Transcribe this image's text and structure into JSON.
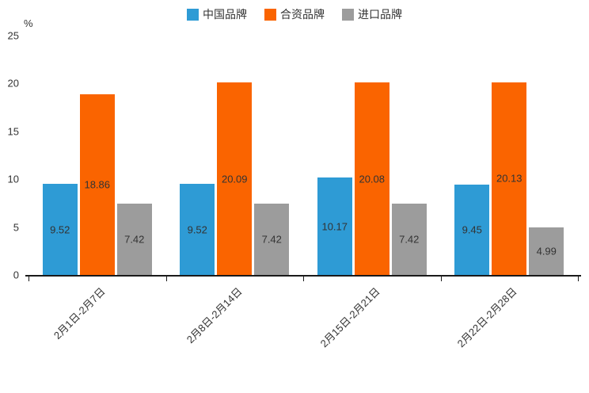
{
  "chart_data": {
    "type": "bar",
    "title": "",
    "xlabel": "",
    "ylabel": "%",
    "ylim": [
      0,
      25
    ],
    "yticks": [
      0,
      5,
      10,
      15,
      20,
      25
    ],
    "grid": false,
    "legend_position": "top",
    "categories": [
      "2月1日-2月7日",
      "2月8日-2月14日",
      "2月15日-2月21日",
      "2月22日-2月28日"
    ],
    "series": [
      {
        "name": "中国品牌",
        "color": "#2E9BD5",
        "values": [
          9.52,
          9.52,
          10.17,
          9.45
        ]
      },
      {
        "name": "合资品牌",
        "color": "#FA6400",
        "values": [
          18.86,
          20.09,
          20.08,
          20.13
        ]
      },
      {
        "name": "进口品牌",
        "color": "#9C9C9C",
        "values": [
          7.42,
          7.42,
          7.42,
          4.99
        ]
      }
    ],
    "axis_color": "#1a1a1a",
    "label_color": "#333333"
  }
}
